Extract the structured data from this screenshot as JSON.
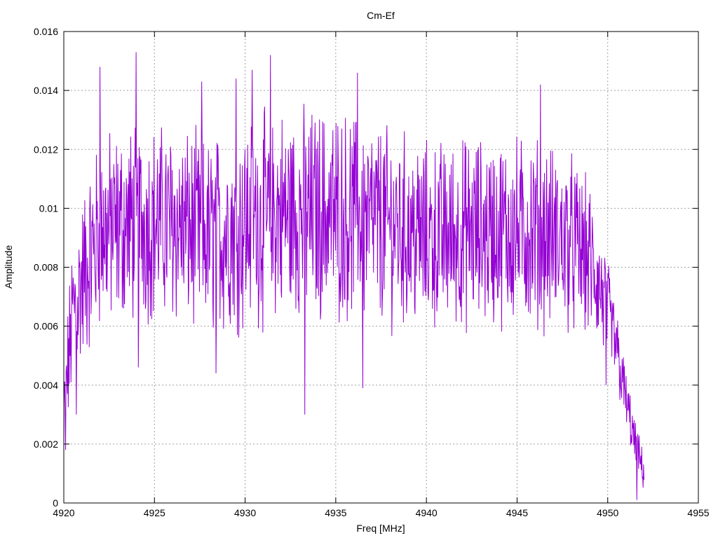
{
  "chart_data": {
    "type": "line",
    "title": "Cm-Ef",
    "xlabel": "Freq [MHz]",
    "ylabel": "Amplitude",
    "xlim": [
      4920,
      4955
    ],
    "ylim": [
      0,
      0.016
    ],
    "xticks": [
      4920,
      4925,
      4930,
      4935,
      4940,
      4945,
      4950,
      4955
    ],
    "xtick_labels": [
      "4920",
      "4925",
      "4930",
      "4935",
      "4940",
      "4945",
      "4950",
      "4955"
    ],
    "yticks": [
      0,
      0.002,
      0.004,
      0.006,
      0.008,
      0.01,
      0.012,
      0.014,
      0.016
    ],
    "ytick_labels": [
      "0",
      "0.002",
      "0.004",
      "0.006",
      "0.008",
      "0.01",
      "0.012",
      "0.014",
      "0.016"
    ],
    "grid": true,
    "legend": "none",
    "series": [
      {
        "color": "#9400d3",
        "x_range": [
          4920,
          4952
        ],
        "envelope": {
          "x": [
            4920,
            4920.5,
            4921,
            4922,
            4924,
            4926,
            4928,
            4930,
            4932,
            4935,
            4938,
            4940,
            4943,
            4946,
            4948,
            4949,
            4950,
            4950.5,
            4951,
            4951.5,
            4952
          ],
          "mean": [
            0.003,
            0.0065,
            0.0075,
            0.0092,
            0.0095,
            0.0095,
            0.009,
            0.0095,
            0.0098,
            0.0098,
            0.0094,
            0.009,
            0.0092,
            0.0092,
            0.0088,
            0.0082,
            0.0065,
            0.0052,
            0.0035,
            0.002,
            0.001
          ],
          "spread": [
            0.0015,
            0.0022,
            0.0025,
            0.0028,
            0.0028,
            0.0028,
            0.0028,
            0.003,
            0.003,
            0.003,
            0.0028,
            0.0027,
            0.0027,
            0.0027,
            0.0025,
            0.0022,
            0.0015,
            0.0012,
            0.0009,
            0.0007,
            0.0005
          ]
        },
        "peaks": [
          {
            "x": 4922.0,
            "y": 0.0148
          },
          {
            "x": 4924.0,
            "y": 0.0153
          },
          {
            "x": 4927.6,
            "y": 0.0143
          },
          {
            "x": 4929.5,
            "y": 0.0144
          },
          {
            "x": 4930.4,
            "y": 0.0147
          },
          {
            "x": 4931.4,
            "y": 0.0152
          },
          {
            "x": 4936.2,
            "y": 0.0146
          },
          {
            "x": 4946.3,
            "y": 0.0142
          }
        ],
        "dips": [
          {
            "x": 4920.1,
            "y": 0.0018
          },
          {
            "x": 4920.7,
            "y": 0.003
          },
          {
            "x": 4924.1,
            "y": 0.0046
          },
          {
            "x": 4928.4,
            "y": 0.0044
          },
          {
            "x": 4933.3,
            "y": 0.003
          },
          {
            "x": 4936.5,
            "y": 0.0039
          },
          {
            "x": 4949.9,
            "y": 0.004
          },
          {
            "x": 4951.6,
            "y": 0.0001
          }
        ]
      }
    ]
  }
}
